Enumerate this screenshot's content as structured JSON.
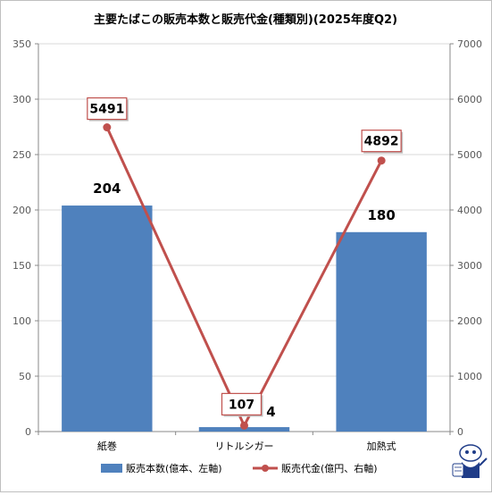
{
  "chart_data": {
    "type": "bar+line",
    "title": "主要たばこの販売本数と販売代金(種類別)(2025年度Q2)",
    "categories": [
      "紙巻",
      "リトルシガー",
      "加熱式"
    ],
    "series": [
      {
        "name": "販売本数(億本、左軸)",
        "type": "bar",
        "axis": "left",
        "color": "#4f81bd",
        "values": [
          204,
          4,
          180
        ],
        "labels": [
          "204",
          "4",
          "180"
        ]
      },
      {
        "name": "販売代金(億円、右軸)",
        "type": "line",
        "axis": "right",
        "color": "#c0504d",
        "values": [
          5491,
          107,
          4892
        ],
        "labels": [
          "5491",
          "107",
          "4892"
        ]
      }
    ],
    "y_left": {
      "min": 0,
      "max": 350,
      "step": 50,
      "ticks": [
        "0",
        "50",
        "100",
        "150",
        "200",
        "250",
        "300",
        "350"
      ]
    },
    "y_right": {
      "min": 0,
      "max": 7000,
      "step": 1000,
      "ticks": [
        "0",
        "1000",
        "2000",
        "3000",
        "4000",
        "5000",
        "6000",
        "7000"
      ]
    },
    "grid": true,
    "legend": "bottom"
  }
}
